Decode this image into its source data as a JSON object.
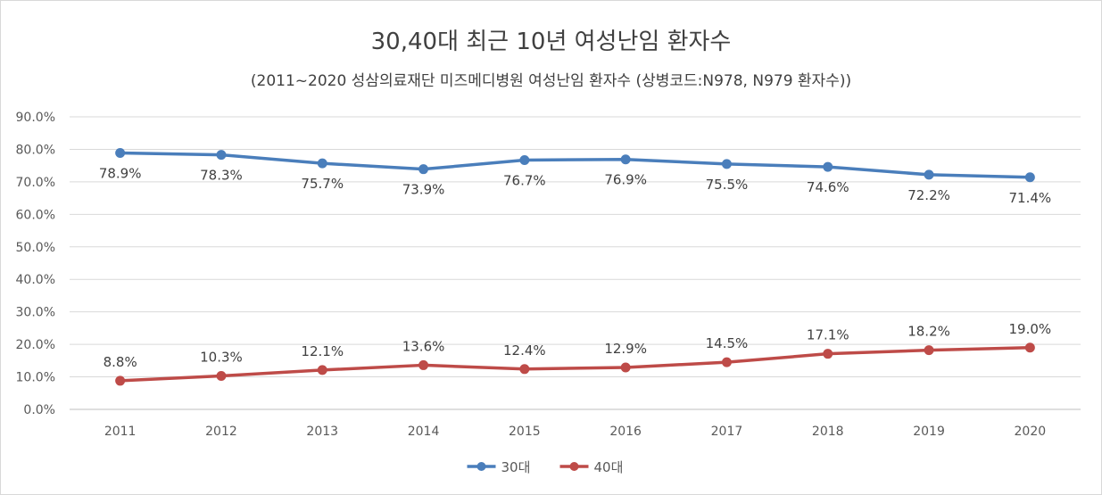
{
  "chart_data": {
    "type": "line",
    "title": "30,40대 최근 10년 여성난임 환자수",
    "subtitle": "(2011~2020  성삼의료재단 미즈메디병원  여성난임 환자수 (상병코드:N978, N979 환자수))",
    "categories": [
      "2011",
      "2012",
      "2013",
      "2014",
      "2015",
      "2016",
      "2017",
      "2018",
      "2019",
      "2020"
    ],
    "ylim": [
      0,
      90
    ],
    "yticks": [
      "0.0%",
      "10.0%",
      "20.0%",
      "30.0%",
      "40.0%",
      "50.0%",
      "60.0%",
      "70.0%",
      "80.0%",
      "90.0%"
    ],
    "grid": true,
    "legend_position": "bottom",
    "series": [
      {
        "name": "30대",
        "color": "#4a7ebb",
        "values": [
          78.9,
          78.3,
          75.7,
          73.9,
          76.7,
          76.9,
          75.5,
          74.6,
          72.2,
          71.4
        ],
        "labels": [
          "78.9%",
          "78.3%",
          "75.7%",
          "73.9%",
          "76.7%",
          "76.9%",
          "75.5%",
          "74.6%",
          "72.2%",
          "71.4%"
        ]
      },
      {
        "name": "40대",
        "color": "#be4b48",
        "values": [
          8.8,
          10.3,
          12.1,
          13.6,
          12.4,
          12.9,
          14.5,
          17.1,
          18.2,
          19.0
        ],
        "labels": [
          "8.8%",
          "10.3%",
          "12.1%",
          "13.6%",
          "12.4%",
          "12.9%",
          "14.5%",
          "17.1%",
          "18.2%",
          "19.0%"
        ]
      }
    ]
  }
}
